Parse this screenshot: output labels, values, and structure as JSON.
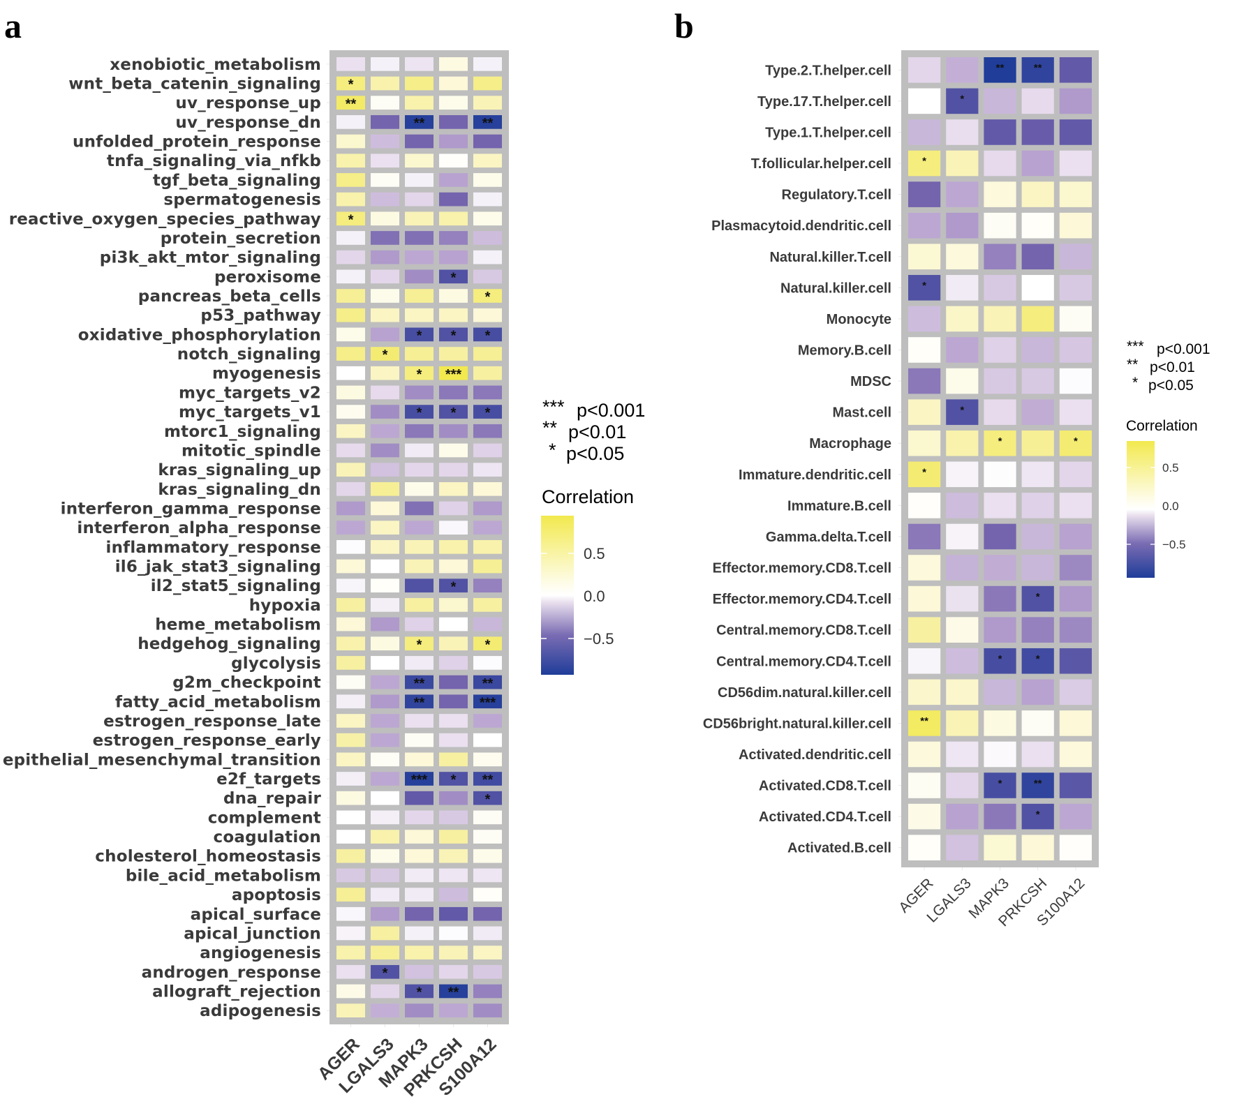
{
  "chart_data": [
    {
      "panel": "a",
      "type": "heatmap",
      "title": "",
      "xlabel": "",
      "ylabel": "",
      "columns": [
        "AGER",
        "LGALS3",
        "MAPK3",
        "PRKCSH",
        "S100A12"
      ],
      "rows": [
        "xenobiotic_metabolism",
        "wnt_beta_catenin_signaling",
        "uv_response_up",
        "uv_response_dn",
        "unfolded_protein_response",
        "tnfa_signaling_via_nfkb",
        "tgf_beta_signaling",
        "spermatogenesis",
        "reactive_oxygen_species_pathway",
        "protein_secretion",
        "pi3k_akt_mtor_signaling",
        "peroxisome",
        "pancreas_beta_cells",
        "p53_pathway",
        "oxidative_phosphorylation",
        "notch_signaling",
        "myogenesis",
        "myc_targets_v2",
        "myc_targets_v1",
        "mtorc1_signaling",
        "mitotic_spindle",
        "kras_signaling_up",
        "kras_signaling_dn",
        "interferon_gamma_response",
        "interferon_alpha_response",
        "inflammatory_response",
        "il6_jak_stat3_signaling",
        "il2_stat5_signaling",
        "hypoxia",
        "heme_metabolism",
        "hedgehog_signaling",
        "glycolysis",
        "g2m_checkpoint",
        "fatty_acid_metabolism",
        "estrogen_response_late",
        "estrogen_response_early",
        "epithelial_mesenchymal_transition",
        "e2f_targets",
        "dna_repair",
        "complement",
        "coagulation",
        "cholesterol_homeostasis",
        "bile_acid_metabolism",
        "apoptosis",
        "apical_surface",
        "apical_junction",
        "angiogenesis",
        "androgen_response",
        "allograft_rejection",
        "adipogenesis"
      ],
      "values": [
        [
          -0.15,
          -0.07,
          -0.13,
          0.15,
          -0.07
        ],
        [
          0.6,
          0.4,
          0.55,
          0.2,
          0.55
        ],
        [
          0.7,
          0.05,
          0.4,
          0.1,
          0.35
        ],
        [
          -0.07,
          -0.55,
          -0.78,
          -0.55,
          -0.78
        ],
        [
          0.25,
          -0.3,
          -0.55,
          -0.42,
          -0.55
        ],
        [
          0.4,
          -0.15,
          0.25,
          0.02,
          0.3
        ],
        [
          0.55,
          0.05,
          -0.07,
          -0.4,
          0.1
        ],
        [
          0.4,
          -0.3,
          -0.2,
          -0.55,
          -0.07
        ],
        [
          0.6,
          0.15,
          0.35,
          0.4,
          0.1
        ],
        [
          -0.07,
          -0.52,
          -0.52,
          -0.48,
          -0.3
        ],
        [
          -0.2,
          -0.42,
          -0.38,
          -0.4,
          -0.07
        ],
        [
          -0.07,
          -0.2,
          -0.45,
          -0.65,
          -0.25
        ],
        [
          0.5,
          0.1,
          0.5,
          0.15,
          0.6
        ],
        [
          0.55,
          0.3,
          0.3,
          0.3,
          0.2
        ],
        [
          0.1,
          -0.4,
          -0.68,
          -0.65,
          -0.68
        ],
        [
          0.55,
          0.65,
          0.5,
          0.45,
          0.5
        ],
        [
          0.0,
          0.3,
          0.6,
          0.8,
          0.45
        ],
        [
          0.15,
          -0.18,
          -0.45,
          -0.5,
          -0.5
        ],
        [
          0.08,
          -0.45,
          -0.68,
          -0.65,
          -0.68
        ],
        [
          0.3,
          -0.38,
          -0.5,
          -0.45,
          -0.5
        ],
        [
          -0.18,
          -0.45,
          -0.1,
          0.1,
          -0.22
        ],
        [
          0.35,
          -0.28,
          -0.2,
          -0.2,
          -0.12
        ],
        [
          -0.2,
          0.5,
          0.1,
          0.3,
          0.2
        ],
        [
          -0.42,
          0.2,
          -0.52,
          -0.22,
          -0.42
        ],
        [
          -0.38,
          0.3,
          -0.38,
          -0.04,
          -0.38
        ],
        [
          -0.02,
          0.3,
          0.35,
          0.4,
          0.4
        ],
        [
          0.2,
          0.0,
          0.35,
          0.2,
          0.5
        ],
        [
          -0.05,
          0.03,
          -0.65,
          -0.65,
          -0.48
        ],
        [
          0.45,
          -0.08,
          0.45,
          0.25,
          0.45
        ],
        [
          0.2,
          -0.42,
          -0.22,
          0.0,
          -0.32
        ],
        [
          0.4,
          0.15,
          0.6,
          0.35,
          0.65
        ],
        [
          0.45,
          0.0,
          -0.1,
          -0.22,
          -0.02
        ],
        [
          0.05,
          -0.38,
          -0.72,
          -0.55,
          -0.72
        ],
        [
          -0.08,
          -0.42,
          -0.75,
          -0.55,
          -0.78
        ],
        [
          0.3,
          -0.38,
          -0.15,
          -0.15,
          -0.38
        ],
        [
          0.42,
          -0.38,
          0.05,
          -0.15,
          0.0
        ],
        [
          0.3,
          0.05,
          0.2,
          0.45,
          0.08
        ],
        [
          -0.08,
          -0.38,
          -0.78,
          -0.65,
          -0.7
        ],
        [
          0.15,
          0.0,
          -0.6,
          -0.45,
          -0.65
        ],
        [
          0.0,
          -0.08,
          -0.2,
          -0.25,
          0.05
        ],
        [
          0.0,
          0.4,
          0.2,
          0.45,
          0.05
        ],
        [
          0.45,
          0.1,
          0.2,
          0.35,
          0.1
        ],
        [
          -0.25,
          -0.25,
          -0.1,
          -0.12,
          -0.12
        ],
        [
          0.5,
          -0.1,
          -0.1,
          -0.3,
          0.03
        ],
        [
          -0.04,
          -0.42,
          -0.55,
          -0.6,
          -0.55
        ],
        [
          -0.06,
          0.45,
          -0.07,
          -0.02,
          -0.1
        ],
        [
          0.4,
          0.5,
          0.4,
          0.35,
          0.3
        ],
        [
          -0.15,
          -0.65,
          -0.28,
          -0.2,
          -0.25
        ],
        [
          0.12,
          -0.2,
          -0.65,
          -0.78,
          -0.48
        ],
        [
          0.35,
          -0.35,
          -0.45,
          -0.38,
          -0.45
        ]
      ],
      "significance": [
        [
          "",
          "",
          "",
          "",
          ""
        ],
        [
          "*",
          "",
          "",
          "",
          ""
        ],
        [
          "**",
          "",
          "",
          "",
          ""
        ],
        [
          "",
          "",
          "**",
          "",
          "**"
        ],
        [
          "",
          "",
          "",
          "",
          ""
        ],
        [
          "",
          "",
          "",
          "",
          ""
        ],
        [
          "",
          "",
          "",
          "",
          ""
        ],
        [
          "",
          "",
          "",
          "",
          ""
        ],
        [
          "*",
          "",
          "",
          "",
          ""
        ],
        [
          "",
          "",
          "",
          "",
          ""
        ],
        [
          "",
          "",
          "",
          "",
          ""
        ],
        [
          "",
          "",
          "",
          "*",
          ""
        ],
        [
          "",
          "",
          "",
          "",
          "*"
        ],
        [
          "",
          "",
          "",
          "",
          ""
        ],
        [
          "",
          "",
          "*",
          "*",
          "*"
        ],
        [
          "",
          "*",
          "",
          "",
          ""
        ],
        [
          "",
          "",
          "*",
          "***",
          ""
        ],
        [
          "",
          "",
          "",
          "",
          ""
        ],
        [
          "",
          "",
          "*",
          "*",
          "*"
        ],
        [
          "",
          "",
          "",
          "",
          ""
        ],
        [
          "",
          "",
          "",
          "",
          ""
        ],
        [
          "",
          "",
          "",
          "",
          ""
        ],
        [
          "",
          "",
          "",
          "",
          ""
        ],
        [
          "",
          "",
          "",
          "",
          ""
        ],
        [
          "",
          "",
          "",
          "",
          ""
        ],
        [
          "",
          "",
          "",
          "",
          ""
        ],
        [
          "",
          "",
          "",
          "",
          ""
        ],
        [
          "",
          "",
          "",
          "*",
          ""
        ],
        [
          "",
          "",
          "",
          "",
          ""
        ],
        [
          "",
          "",
          "",
          "",
          ""
        ],
        [
          "",
          "",
          "*",
          "",
          "*"
        ],
        [
          "",
          "",
          "",
          "",
          ""
        ],
        [
          "",
          "",
          "**",
          "",
          "**"
        ],
        [
          "",
          "",
          "**",
          "",
          "***"
        ],
        [
          "",
          "",
          "",
          "",
          ""
        ],
        [
          "",
          "",
          "",
          "",
          ""
        ],
        [
          "",
          "",
          "",
          "",
          ""
        ],
        [
          "",
          "",
          "***",
          "*",
          "**"
        ],
        [
          "",
          "",
          "",
          "",
          "*"
        ],
        [
          "",
          "",
          "",
          "",
          ""
        ],
        [
          "",
          "",
          "",
          "",
          ""
        ],
        [
          "",
          "",
          "",
          "",
          ""
        ],
        [
          "",
          "",
          "",
          "",
          ""
        ],
        [
          "",
          "",
          "",
          "",
          ""
        ],
        [
          "",
          "",
          "",
          "",
          ""
        ],
        [
          "",
          "",
          "",
          "",
          ""
        ],
        [
          "",
          "",
          "",
          "",
          ""
        ],
        [
          "",
          "*",
          "",
          "",
          ""
        ],
        [
          "",
          "",
          "*",
          "**",
          ""
        ],
        [
          "",
          "",
          "",
          "",
          ""
        ]
      ],
      "legend": {
        "significance_keys": [
          {
            "stars": "***",
            "label": "p<0.001"
          },
          {
            "stars": "**",
            "label": "p<0.01"
          },
          {
            "stars": "*",
            "label": "p<0.05"
          }
        ],
        "colorbar_title": "Correlation",
        "colorbar_ticks": [
          "0.5",
          "0.0",
          "−0.5"
        ],
        "colorbar_tick_values": [
          0.5,
          0.0,
          -0.5
        ],
        "range": [
          -0.8,
          0.8
        ],
        "placement": "right"
      }
    },
    {
      "panel": "b",
      "type": "heatmap",
      "title": "",
      "xlabel": "",
      "ylabel": "",
      "columns": [
        "AGER",
        "LGALS3",
        "MAPK3",
        "PRKCSH",
        "S100A12"
      ],
      "rows": [
        "Type.2.T.helper.cell",
        "Type.17.T.helper.cell",
        "Type.1.T.helper.cell",
        "T.follicular.helper.cell",
        "Regulatory.T.cell",
        "Plasmacytoid.dendritic.cell",
        "Natural.killer.T.cell",
        "Natural.killer.cell",
        "Monocyte",
        "Memory.B.cell",
        "MDSC",
        "Mast.cell",
        "Macrophage",
        "Immature.dendritic.cell",
        "Immature.B.cell",
        "Gamma.delta.T.cell",
        "Effector.memory.CD8.T.cell",
        "Effector.memory.CD4.T.cell",
        "Central.memory.CD8.T.cell",
        "Central.memory.CD4.T.cell",
        "CD56dim.natural.killer.cell",
        "CD56bright.natural.killer.cell",
        "Activated.dendritic.cell",
        "Activated.CD8.T.cell",
        "Activated.CD4.T.cell",
        "Activated.B.cell"
      ],
      "values": [
        [
          -0.2,
          -0.35,
          -0.8,
          -0.75,
          -0.6
        ],
        [
          0.0,
          -0.65,
          -0.32,
          -0.18,
          -0.42
        ],
        [
          -0.32,
          -0.16,
          -0.6,
          -0.58,
          -0.6
        ],
        [
          0.6,
          0.35,
          -0.18,
          -0.4,
          -0.15
        ],
        [
          -0.55,
          -0.38,
          0.18,
          0.3,
          0.25
        ],
        [
          -0.38,
          -0.42,
          0.05,
          0.03,
          0.2
        ],
        [
          0.22,
          0.18,
          -0.48,
          -0.55,
          -0.32
        ],
        [
          -0.65,
          -0.1,
          -0.25,
          0.0,
          -0.25
        ],
        [
          -0.3,
          0.28,
          0.35,
          0.6,
          0.05
        ],
        [
          0.03,
          -0.38,
          -0.22,
          -0.32,
          -0.26
        ],
        [
          -0.5,
          0.1,
          -0.25,
          -0.25,
          -0.02
        ],
        [
          0.3,
          -0.65,
          -0.18,
          -0.36,
          -0.15
        ],
        [
          0.25,
          0.4,
          0.6,
          0.5,
          0.65
        ],
        [
          0.65,
          -0.06,
          -0.01,
          -0.12,
          -0.2
        ],
        [
          0.02,
          -0.3,
          -0.15,
          -0.22,
          -0.15
        ],
        [
          -0.5,
          -0.06,
          -0.55,
          -0.32,
          -0.4
        ],
        [
          0.18,
          -0.34,
          -0.36,
          -0.32,
          -0.46
        ],
        [
          0.2,
          -0.14,
          -0.5,
          -0.65,
          -0.42
        ],
        [
          0.45,
          0.12,
          -0.42,
          -0.48,
          -0.46
        ],
        [
          -0.05,
          -0.3,
          -0.68,
          -0.7,
          -0.62
        ],
        [
          0.26,
          0.26,
          -0.32,
          -0.4,
          -0.24
        ],
        [
          0.72,
          0.36,
          0.16,
          0.05,
          0.2
        ],
        [
          0.18,
          -0.12,
          -0.03,
          -0.15,
          0.18
        ],
        [
          0.06,
          -0.2,
          -0.68,
          -0.75,
          -0.62
        ],
        [
          0.12,
          -0.4,
          -0.5,
          -0.65,
          -0.38
        ],
        [
          0.03,
          -0.28,
          0.22,
          0.2,
          0.02
        ]
      ],
      "significance": [
        [
          "",
          "",
          "**",
          "**",
          ""
        ],
        [
          "",
          "*",
          "",
          "",
          ""
        ],
        [
          "",
          "",
          "",
          "",
          ""
        ],
        [
          "*",
          "",
          "",
          "",
          ""
        ],
        [
          "",
          "",
          "",
          "",
          ""
        ],
        [
          "",
          "",
          "",
          "",
          ""
        ],
        [
          "",
          "",
          "",
          "",
          ""
        ],
        [
          "*",
          "",
          "",
          "",
          ""
        ],
        [
          "",
          "",
          "",
          "",
          ""
        ],
        [
          "",
          "",
          "",
          "",
          ""
        ],
        [
          "",
          "",
          "",
          "",
          ""
        ],
        [
          "",
          "*",
          "",
          "",
          ""
        ],
        [
          "",
          "",
          "*",
          "",
          "*"
        ],
        [
          "*",
          "",
          "",
          "",
          ""
        ],
        [
          "",
          "",
          "",
          "",
          ""
        ],
        [
          "",
          "",
          "",
          "",
          ""
        ],
        [
          "",
          "",
          "",
          "",
          ""
        ],
        [
          "",
          "",
          "",
          "*",
          ""
        ],
        [
          "",
          "",
          "",
          "",
          ""
        ],
        [
          "",
          "",
          "*",
          "*",
          ""
        ],
        [
          "",
          "",
          "",
          "",
          ""
        ],
        [
          "**",
          "",
          "",
          "",
          ""
        ],
        [
          "",
          "",
          "",
          "",
          ""
        ],
        [
          "",
          "",
          "*",
          "**",
          ""
        ],
        [
          "",
          "",
          "",
          "*",
          ""
        ],
        [
          "",
          "",
          "",
          "",
          ""
        ]
      ],
      "legend": {
        "significance_keys": [
          {
            "stars": "***",
            "label": "p<0.001"
          },
          {
            "stars": "**",
            "label": "p<0.01"
          },
          {
            "stars": "*",
            "label": "p<0.05"
          }
        ],
        "colorbar_title": "Correlation",
        "colorbar_ticks": [
          "0.5",
          "0.0",
          "−0.5"
        ],
        "colorbar_tick_values": [
          0.5,
          0.0,
          -0.5
        ],
        "range": [
          -0.8,
          0.8
        ],
        "placement": "right"
      }
    }
  ],
  "panel_labels": [
    "a",
    "b"
  ],
  "colors": {
    "high": "#f2e94e",
    "mid": "#ffffff",
    "low": "#1f3d99",
    "grid_background": "#bebebe"
  }
}
